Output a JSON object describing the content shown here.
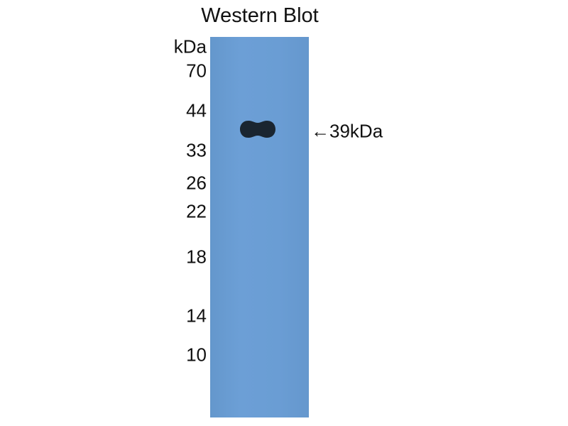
{
  "title": "Western Blot",
  "unit_label": "kDa",
  "markers": [
    "70",
    "44",
    "33",
    "26",
    "22",
    "18",
    "14",
    "10"
  ],
  "band_annotation": "←39kDa",
  "colors": {
    "membrane": "#6a9dd4",
    "band": "#1a2530"
  }
}
